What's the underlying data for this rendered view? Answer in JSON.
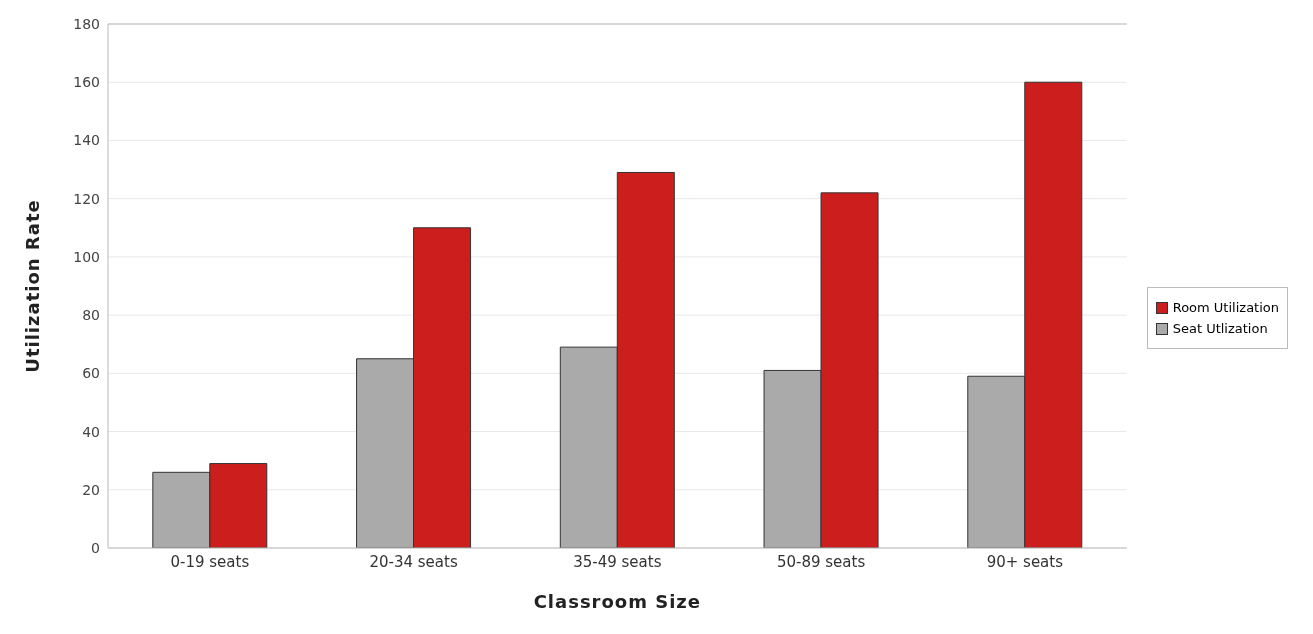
{
  "chart_data": {
    "type": "bar",
    "xlabel": "Classroom Size",
    "ylabel": "Utilization Rate",
    "categories": [
      "0-19 seats",
      "20-34 seats",
      "35-49 seats",
      "50-89 seats",
      "90+ seats"
    ],
    "series": [
      {
        "name": "Seat Utlization",
        "color": "#aaaaaa",
        "values": [
          26,
          65,
          69,
          61,
          59
        ]
      },
      {
        "name": "Room Utilization",
        "color": "#cc1f1d",
        "values": [
          29,
          110,
          129,
          122,
          160
        ]
      }
    ],
    "ylim": [
      0,
      180
    ],
    "yticks": [
      0,
      20,
      40,
      60,
      80,
      100,
      120,
      140,
      160,
      180
    ],
    "grid": "y",
    "legend": "right"
  }
}
